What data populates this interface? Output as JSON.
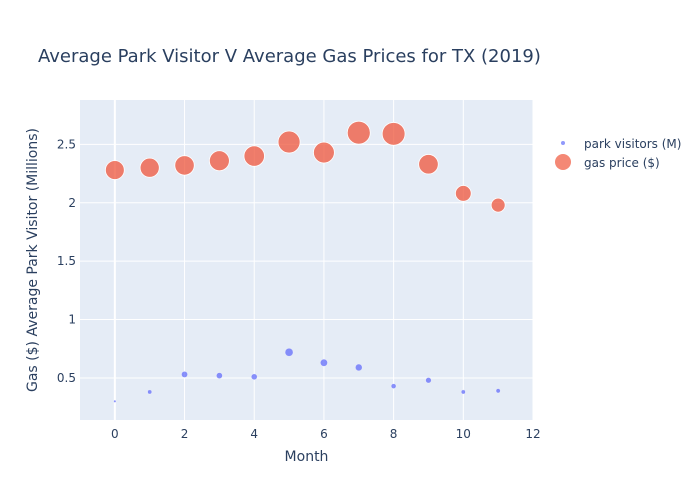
{
  "chart_data": {
    "type": "scatter",
    "title": "Average Park Visitor V Average Gas Prices for TX (2019)",
    "xlabel": "Month",
    "ylabel": "Gas ($) Average Park Visitor (Millions)",
    "xlim": [
      -1,
      12
    ],
    "ylim": [
      0.14,
      2.88
    ],
    "x_ticks": [
      0,
      2,
      4,
      6,
      8,
      10,
      12
    ],
    "y_ticks": [
      0.5,
      1,
      1.5,
      2,
      2.5
    ],
    "y_tick_labels": [
      "0.5",
      "1",
      "1.5",
      "2",
      "2.5"
    ],
    "grid": true,
    "legend_position": "top-right",
    "series": [
      {
        "name": "park visitors (M)",
        "color": "#636efa",
        "x": [
          0,
          1,
          2,
          3,
          4,
          5,
          6,
          7,
          8,
          9,
          10,
          11
        ],
        "y": [
          0.3,
          0.38,
          0.53,
          0.52,
          0.51,
          0.72,
          0.63,
          0.59,
          0.43,
          0.48,
          0.38,
          0.39
        ]
      },
      {
        "name": "gas price ($)",
        "color": "#ef553b",
        "x": [
          0,
          1,
          2,
          3,
          4,
          5,
          6,
          7,
          8,
          9,
          10,
          11
        ],
        "y": [
          2.28,
          2.3,
          2.32,
          2.36,
          2.4,
          2.52,
          2.43,
          2.6,
          2.59,
          2.33,
          2.08,
          1.98
        ]
      }
    ]
  }
}
